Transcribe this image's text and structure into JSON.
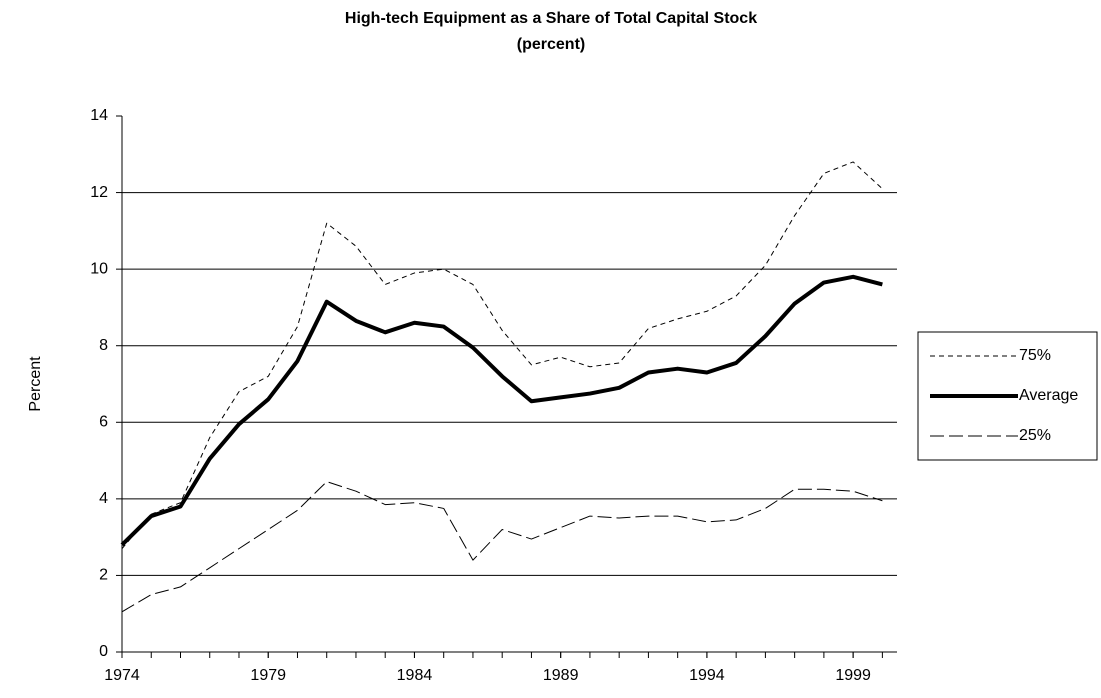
{
  "chart_data": {
    "type": "line",
    "title": "High-tech Equipment as a Share of Total Capital Stock",
    "subtitle": "(percent)",
    "y_label": "Percent",
    "x": [
      1974,
      1975,
      1976,
      1977,
      1978,
      1979,
      1980,
      1981,
      1982,
      1983,
      1984,
      1985,
      1986,
      1987,
      1988,
      1989,
      1990,
      1991,
      1992,
      1993,
      1994,
      1995,
      1996,
      1997,
      1998,
      1999,
      2000
    ],
    "series": [
      {
        "name": "75%",
        "color": "#000000",
        "line_style": "dashed",
        "values": [
          2.7,
          3.6,
          3.9,
          5.6,
          6.8,
          7.2,
          8.5,
          11.2,
          10.6,
          9.6,
          9.9,
          10.0,
          9.6,
          8.4,
          7.5,
          7.7,
          7.45,
          7.55,
          8.45,
          8.7,
          8.9,
          9.3,
          10.1,
          11.4,
          12.5,
          12.8,
          12.1
        ]
      },
      {
        "name": "Average",
        "color": "#000000",
        "line_style": "thick",
        "values": [
          2.8,
          3.55,
          3.8,
          5.05,
          5.95,
          6.6,
          7.6,
          9.15,
          8.65,
          8.35,
          8.6,
          8.5,
          7.95,
          7.2,
          6.55,
          6.65,
          6.75,
          6.9,
          7.3,
          7.4,
          7.3,
          7.55,
          8.25,
          9.1,
          9.65,
          9.8,
          9.6
        ]
      },
      {
        "name": "25%",
        "color": "#000000",
        "line_style": "long-dashed",
        "values": [
          1.05,
          1.5,
          1.7,
          2.2,
          2.7,
          3.2,
          3.7,
          4.45,
          4.2,
          3.85,
          3.9,
          3.75,
          2.4,
          3.2,
          2.95,
          3.25,
          3.55,
          3.5,
          3.55,
          3.55,
          3.4,
          3.45,
          3.75,
          4.25,
          4.25,
          4.2,
          3.95
        ]
      }
    ],
    "xlim": [
      1974,
      2000.5
    ],
    "xticks": [
      1974,
      1979,
      1984,
      1989,
      1994,
      1999
    ],
    "ylim": [
      0,
      14
    ],
    "yticks": [
      0,
      2,
      4,
      6,
      8,
      10,
      12,
      14
    ],
    "grid": true,
    "legend": "right"
  }
}
